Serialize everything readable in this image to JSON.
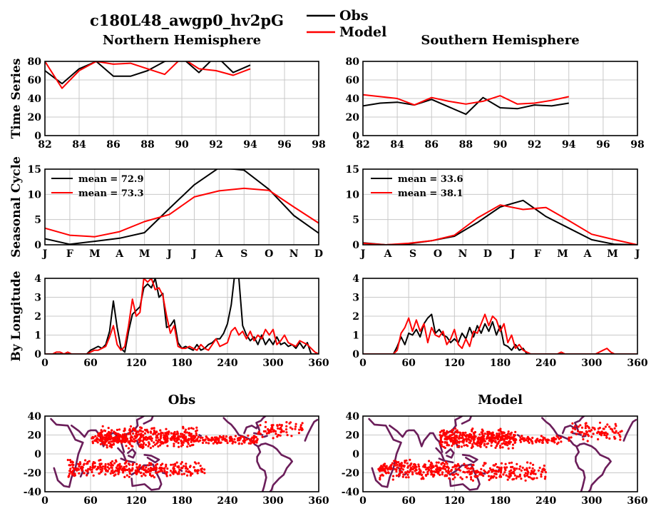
{
  "header": {
    "title": "c180L48_awgp0_hv2pG",
    "legend": [
      {
        "label": "Obs",
        "color": "#000000"
      },
      {
        "label": "Model",
        "color": "#ff0000"
      }
    ]
  },
  "colors": {
    "obs": "#000000",
    "model": "#ff0000",
    "grid": "#c8c8c8",
    "coast": "#6b1e5a",
    "dots": "#ff0000"
  },
  "chart_data": [
    {
      "id": "nh-ts",
      "type": "line",
      "panel_title": "Northern Hemisphere",
      "ylabel": "Time Series",
      "xlim": [
        82,
        98
      ],
      "ylim": [
        0,
        80
      ],
      "xticks": [
        "82",
        "84",
        "86",
        "88",
        "90",
        "92",
        "94",
        "96",
        "98"
      ],
      "yticks": [
        "0",
        "20",
        "40",
        "60",
        "80"
      ],
      "x": [
        82,
        83,
        84,
        85,
        86,
        87,
        88,
        89,
        90,
        91,
        92,
        93,
        94
      ],
      "series": [
        {
          "name": "Obs",
          "values": [
            70,
            56,
            72,
            80,
            64,
            64,
            70,
            80,
            84,
            68,
            86,
            68,
            76
          ]
        },
        {
          "name": "Model",
          "values": [
            80,
            51,
            70,
            80,
            77,
            78,
            72,
            66,
            84,
            72,
            70,
            65,
            72
          ]
        }
      ]
    },
    {
      "id": "sh-ts",
      "type": "line",
      "panel_title": "Southern Hemisphere",
      "ylabel": "",
      "xlim": [
        82,
        98
      ],
      "ylim": [
        0,
        80
      ],
      "xticks": [
        "82",
        "84",
        "86",
        "88",
        "90",
        "92",
        "94",
        "96",
        "98"
      ],
      "yticks": [
        "0",
        "20",
        "40",
        "60",
        "80"
      ],
      "x": [
        82,
        83,
        84,
        85,
        86,
        87,
        88,
        89,
        90,
        91,
        92,
        93,
        94
      ],
      "series": [
        {
          "name": "Obs",
          "values": [
            32,
            35,
            36,
            33,
            39,
            31,
            23,
            41,
            30,
            29,
            33,
            32,
            35
          ]
        },
        {
          "name": "Model",
          "values": [
            44,
            42,
            40,
            33,
            41,
            37,
            34,
            37,
            43,
            34,
            35,
            38,
            42
          ]
        }
      ]
    },
    {
      "id": "nh-sc",
      "type": "line",
      "ylabel": "Seasonal Cycle",
      "xlim": [
        0,
        11
      ],
      "ylim": [
        0,
        15
      ],
      "xticks": [
        "J",
        "F",
        "M",
        "A",
        "M",
        "J",
        "J",
        "A",
        "S",
        "O",
        "N",
        "D"
      ],
      "yticks": [
        "0",
        "5",
        "10",
        "15"
      ],
      "x": [
        0,
        1,
        2,
        3,
        4,
        5,
        6,
        7,
        8,
        9,
        10,
        11
      ],
      "series": [
        {
          "name": "Obs",
          "legend": "mean = 72.9",
          "values": [
            1.2,
            0.1,
            0.7,
            1.3,
            2.4,
            7.2,
            11.9,
            15.3,
            14.8,
            11.0,
            5.8,
            2.3
          ]
        },
        {
          "name": "Model",
          "legend": "mean = 73.3",
          "values": [
            3.3,
            1.9,
            1.6,
            2.6,
            4.6,
            6.0,
            9.5,
            10.7,
            11.2,
            10.8,
            7.5,
            4.3
          ]
        }
      ]
    },
    {
      "id": "sh-sc",
      "type": "line",
      "ylabel": "",
      "xlim": [
        0,
        12
      ],
      "ylim": [
        0,
        15
      ],
      "xticks": [
        "J",
        "A",
        "S",
        "O",
        "N",
        "D",
        "J",
        "F",
        "M",
        "A",
        "M",
        "J"
      ],
      "yticks": [
        "0",
        "5",
        "10",
        "15"
      ],
      "x": [
        0,
        1,
        2,
        3,
        4,
        5,
        6,
        7,
        8,
        9,
        10,
        11,
        12
      ],
      "series": [
        {
          "name": "Obs",
          "legend": "mean = 33.6",
          "values": [
            0.4,
            0,
            0.2,
            0.8,
            1.7,
            4.4,
            7.5,
            8.8,
            5.6,
            3.3,
            1.0,
            0.1,
            0
          ]
        },
        {
          "name": "Model",
          "legend": "mean = 38.1",
          "values": [
            0.3,
            0,
            0.3,
            0.8,
            1.9,
            5.3,
            7.9,
            7.0,
            7.4,
            4.8,
            2.1,
            1.0,
            0
          ]
        }
      ]
    },
    {
      "id": "nh-lon",
      "type": "line",
      "ylabel": "By Longitude",
      "xlim": [
        0,
        360
      ],
      "ylim": [
        0,
        4
      ],
      "xticks": [
        "0",
        "60",
        "120",
        "180",
        "240",
        "300",
        "360"
      ],
      "yticks": [
        "0",
        "1",
        "2",
        "3",
        "4"
      ],
      "x": [
        0,
        5,
        10,
        15,
        20,
        25,
        30,
        35,
        40,
        45,
        50,
        55,
        60,
        65,
        70,
        75,
        80,
        85,
        90,
        95,
        100,
        105,
        110,
        115,
        120,
        125,
        130,
        135,
        140,
        145,
        150,
        155,
        160,
        165,
        170,
        175,
        180,
        185,
        190,
        195,
        200,
        205,
        210,
        215,
        220,
        225,
        230,
        235,
        240,
        245,
        250,
        255,
        260,
        265,
        270,
        275,
        280,
        285,
        290,
        295,
        300,
        305,
        310,
        315,
        320,
        325,
        330,
        335,
        340,
        345,
        350,
        355,
        360
      ],
      "series": [
        {
          "name": "Obs",
          "values": [
            0,
            0,
            0,
            0,
            0,
            0,
            0,
            0,
            0,
            0,
            0,
            0,
            0.2,
            0.3,
            0.4,
            0.3,
            0.5,
            1.2,
            2.8,
            1.4,
            0.3,
            0.1,
            1.2,
            2.1,
            2.3,
            2.5,
            3.5,
            3.7,
            3.5,
            4.0,
            3.0,
            3.2,
            1.4,
            1.5,
            1.8,
            0.6,
            0.3,
            0.4,
            0.3,
            0.2,
            0.5,
            0.2,
            0.3,
            0.5,
            0.6,
            0.8,
            0.8,
            1.1,
            1.6,
            2.6,
            4.4,
            4.0,
            1.5,
            1.0,
            0.7,
            0.9,
            0.5,
            1.0,
            0.5,
            0.8,
            0.5,
            0.9,
            0.5,
            0.6,
            0.4,
            0.5,
            0.3,
            0.6,
            0.3,
            0.6,
            0,
            0,
            0
          ]
        },
        {
          "name": "Model",
          "values": [
            0,
            0,
            0,
            0.1,
            0.1,
            0,
            0.1,
            0,
            0,
            0,
            0,
            0,
            0.1,
            0.2,
            0.2,
            0.3,
            0.4,
            0.9,
            1.5,
            0.5,
            0.2,
            0.4,
            1.5,
            2.9,
            2.0,
            2.2,
            4.0,
            3.8,
            4.0,
            3.4,
            3.5,
            3.1,
            2.0,
            1.1,
            1.5,
            0.4,
            0.3,
            0.3,
            0.4,
            0.3,
            0.2,
            0.5,
            0.3,
            0.2,
            0.5,
            0.8,
            0.4,
            0.5,
            0.6,
            1.2,
            1.4,
            1.0,
            1.2,
            0.8,
            1.2,
            0.7,
            1.0,
            0.8,
            1.3,
            1.0,
            1.3,
            0.5,
            0.7,
            1.0,
            0.6,
            0.5,
            0.4,
            0.7,
            0.6,
            0.5,
            0.3,
            0.1,
            0
          ]
        }
      ]
    },
    {
      "id": "sh-lon",
      "type": "line",
      "ylabel": "",
      "xlim": [
        0,
        360
      ],
      "ylim": [
        0,
        4
      ],
      "xticks": [
        "0",
        "60",
        "120",
        "180",
        "240",
        "300",
        "360"
      ],
      "yticks": [
        "0",
        "1",
        "2",
        "3",
        "4"
      ],
      "x": [
        0,
        5,
        10,
        15,
        20,
        25,
        30,
        35,
        40,
        45,
        50,
        55,
        60,
        65,
        70,
        75,
        80,
        85,
        90,
        95,
        100,
        105,
        110,
        115,
        120,
        125,
        130,
        135,
        140,
        145,
        150,
        155,
        160,
        165,
        170,
        175,
        180,
        185,
        190,
        195,
        200,
        205,
        210,
        215,
        220,
        225,
        230,
        235,
        240,
        245,
        250,
        255,
        260,
        265,
        270,
        275,
        280,
        285,
        290,
        295,
        300,
        305,
        310,
        315,
        320,
        325,
        330,
        335,
        340,
        345,
        350,
        355,
        360
      ],
      "series": [
        {
          "name": "Obs",
          "values": [
            0,
            0,
            0,
            0,
            0,
            0,
            0,
            0,
            0,
            0.4,
            0.9,
            0.5,
            1.1,
            1.0,
            1.3,
            0.9,
            1.6,
            1.9,
            2.1,
            1.1,
            1.3,
            1.0,
            0.9,
            0.6,
            0.8,
            0.6,
            1.1,
            0.8,
            1.4,
            0.9,
            1.5,
            1.1,
            1.6,
            1.2,
            1.7,
            1.0,
            1.5,
            0.5,
            0.4,
            0.2,
            0.5,
            0.2,
            0.3,
            0,
            0,
            0,
            0,
            0,
            0,
            0,
            0,
            0,
            0,
            0,
            0,
            0,
            0,
            0,
            0,
            0,
            0,
            0,
            0,
            0,
            0,
            0,
            0,
            0,
            0,
            0,
            0,
            0,
            0
          ]
        },
        {
          "name": "Model",
          "values": [
            0,
            0,
            0,
            0,
            0,
            0,
            0,
            0,
            0,
            0.2,
            1.1,
            1.4,
            1.9,
            1.2,
            1.8,
            1.2,
            1.6,
            0.6,
            1.4,
            1.0,
            0.9,
            1.2,
            0.5,
            0.8,
            1.3,
            0.5,
            0.3,
            0.8,
            0.4,
            1.2,
            1.1,
            1.6,
            2.1,
            1.5,
            2.0,
            1.8,
            1.2,
            1.6,
            0.6,
            1.0,
            0.3,
            0.5,
            0.2,
            0.1,
            0,
            0,
            0,
            0,
            0,
            0,
            0,
            0,
            0.1,
            0,
            0,
            0,
            0,
            0,
            0,
            0,
            0,
            0,
            0.1,
            0.2,
            0.3,
            0.1,
            0,
            0,
            0,
            0,
            0,
            0,
            0
          ]
        }
      ]
    },
    {
      "id": "map-obs",
      "type": "scatter",
      "panel_title": "Obs",
      "xlim": [
        0,
        360
      ],
      "ylim": [
        -40,
        40
      ],
      "xticks": [
        "0",
        "60",
        "120",
        "180",
        "240",
        "300",
        "360"
      ],
      "yticks": [
        "-40",
        "-20",
        "0",
        "20",
        "40"
      ],
      "clusters": [
        {
          "lon_range": [
            70,
            200
          ],
          "lat_range": [
            5,
            30
          ],
          "count": 420
        },
        {
          "lon_range": [
            200,
            280
          ],
          "lat_range": [
            10,
            20
          ],
          "count": 120
        },
        {
          "lon_range": [
            280,
            340
          ],
          "lat_range": [
            15,
            35
          ],
          "count": 70
        },
        {
          "lon_range": [
            30,
            110
          ],
          "lat_range": [
            -25,
            -5
          ],
          "count": 170
        },
        {
          "lon_range": [
            110,
            210
          ],
          "lat_range": [
            -25,
            -8
          ],
          "count": 170
        },
        {
          "lon_range": [
            60,
            100
          ],
          "lat_range": [
            10,
            22
          ],
          "count": 50
        }
      ]
    },
    {
      "id": "map-model",
      "type": "scatter",
      "panel_title": "Model",
      "xlim": [
        0,
        360
      ],
      "ylim": [
        -40,
        40
      ],
      "xticks": [
        "0",
        "60",
        "120",
        "180",
        "240",
        "300",
        "360"
      ],
      "yticks": [
        "-40",
        "-20",
        "0",
        "20",
        "40"
      ],
      "clusters": [
        {
          "lon_range": [
            100,
            200
          ],
          "lat_range": [
            5,
            28
          ],
          "count": 380
        },
        {
          "lon_range": [
            200,
            260
          ],
          "lat_range": [
            10,
            20
          ],
          "count": 70
        },
        {
          "lon_range": [
            270,
            340
          ],
          "lat_range": [
            12,
            35
          ],
          "count": 90
        },
        {
          "lon_range": [
            20,
            110
          ],
          "lat_range": [
            -28,
            -5
          ],
          "count": 220
        },
        {
          "lon_range": [
            110,
            240
          ],
          "lat_range": [
            -30,
            -8
          ],
          "count": 220
        }
      ]
    }
  ]
}
